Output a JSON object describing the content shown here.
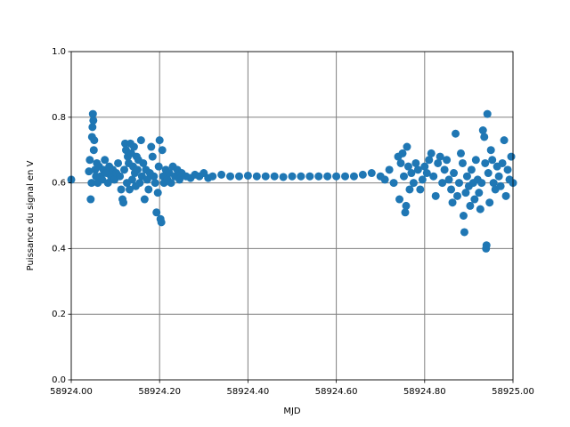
{
  "chart_data": {
    "type": "scatter",
    "xlabel": "MJD",
    "ylabel": "Puissance du signal en V",
    "color": "#1f77b4",
    "grid": true,
    "xlim": [
      58924.0,
      58925.0
    ],
    "xticks": [
      {
        "value": 58924.0,
        "label": "58924.00"
      },
      {
        "value": 58924.2,
        "label": "58924.20"
      },
      {
        "value": 58924.4,
        "label": "58924.40"
      },
      {
        "value": 58924.6,
        "label": "58924.60"
      },
      {
        "value": 58924.8,
        "label": "58924.80"
      },
      {
        "value": 58925.0,
        "label": "58925.00"
      }
    ],
    "ylim": [
      0,
      1
    ],
    "yticks": [
      {
        "value": 0,
        "label": "0.0"
      },
      0.2,
      0.4,
      0.6,
      0.8,
      {
        "value": 1,
        "label": "1.0"
      }
    ],
    "x": [
      58924.0,
      58924.04,
      58924.042,
      58924.044,
      58924.046,
      58924.047,
      58924.048,
      58924.049,
      58924.05,
      58924.051,
      58924.052,
      58924.054,
      58924.056,
      58924.058,
      58924.06,
      58924.063,
      58924.066,
      58924.07,
      58924.073,
      58924.076,
      58924.08,
      58924.083,
      58924.086,
      58924.09,
      58924.094,
      58924.098,
      58924.102,
      58924.106,
      58924.11,
      58924.113,
      58924.116,
      58924.118,
      58924.12,
      58924.122,
      58924.124,
      58924.126,
      58924.128,
      58924.13,
      58924.132,
      58924.134,
      58924.136,
      58924.138,
      58924.14,
      58924.142,
      58924.144,
      58924.146,
      58924.148,
      58924.15,
      58924.152,
      58924.155,
      58924.158,
      58924.16,
      58924.163,
      58924.166,
      58924.169,
      58924.172,
      58924.175,
      58924.178,
      58924.181,
      58924.184,
      58924.187,
      58924.19,
      58924.193,
      58924.196,
      58924.198,
      58924.2,
      58924.202,
      58924.204,
      58924.206,
      58924.208,
      58924.21,
      58924.214,
      58924.218,
      58924.222,
      58924.226,
      58924.23,
      58924.235,
      58924.24,
      58924.245,
      58924.25,
      58924.26,
      58924.27,
      58924.28,
      58924.29,
      58924.3,
      58924.31,
      58924.32,
      58924.34,
      58924.36,
      58924.38,
      58924.4,
      58924.42,
      58924.44,
      58924.46,
      58924.48,
      58924.5,
      58924.52,
      58924.54,
      58924.56,
      58924.58,
      58924.6,
      58924.62,
      58924.64,
      58924.66,
      58924.68,
      58924.7,
      58924.71,
      58924.72,
      58924.73,
      58924.74,
      58924.743,
      58924.746,
      58924.75,
      58924.753,
      58924.756,
      58924.758,
      58924.76,
      58924.763,
      58924.766,
      58924.77,
      58924.775,
      58924.78,
      58924.785,
      58924.79,
      58924.795,
      58924.8,
      58924.805,
      58924.81,
      58924.815,
      58924.82,
      58924.825,
      58924.83,
      58924.835,
      58924.84,
      58924.845,
      58924.85,
      58924.855,
      58924.86,
      58924.863,
      58924.866,
      58924.87,
      58924.874,
      58924.878,
      58924.882,
      58924.886,
      58924.888,
      58924.89,
      58924.893,
      58924.896,
      58924.9,
      58924.903,
      58924.906,
      58924.91,
      58924.913,
      58924.916,
      58924.92,
      58924.923,
      58924.926,
      58924.929,
      58924.932,
      58924.935,
      58924.937,
      58924.939,
      58924.94,
      58924.942,
      58924.944,
      58924.947,
      58924.95,
      58924.953,
      58924.956,
      58924.96,
      58924.964,
      58924.968,
      58924.972,
      58924.976,
      58924.98,
      58924.984,
      58924.988,
      58924.992,
      58924.996,
      58925.0
    ],
    "values": [
      0.61,
      0.635,
      0.67,
      0.55,
      0.6,
      0.74,
      0.77,
      0.81,
      0.79,
      0.7,
      0.73,
      0.64,
      0.62,
      0.66,
      0.6,
      0.65,
      0.62,
      0.61,
      0.64,
      0.67,
      0.63,
      0.6,
      0.65,
      0.62,
      0.64,
      0.61,
      0.63,
      0.66,
      0.62,
      0.58,
      0.55,
      0.54,
      0.64,
      0.72,
      0.7,
      0.6,
      0.68,
      0.66,
      0.58,
      0.72,
      0.69,
      0.61,
      0.65,
      0.71,
      0.63,
      0.59,
      0.68,
      0.64,
      0.67,
      0.6,
      0.73,
      0.62,
      0.66,
      0.55,
      0.64,
      0.61,
      0.58,
      0.63,
      0.71,
      0.68,
      0.62,
      0.6,
      0.51,
      0.57,
      0.65,
      0.73,
      0.49,
      0.48,
      0.7,
      0.62,
      0.6,
      0.64,
      0.61,
      0.63,
      0.6,
      0.65,
      0.62,
      0.64,
      0.61,
      0.63,
      0.62,
      0.615,
      0.625,
      0.62,
      0.63,
      0.615,
      0.62,
      0.625,
      0.62,
      0.62,
      0.622,
      0.62,
      0.62,
      0.62,
      0.618,
      0.62,
      0.62,
      0.62,
      0.62,
      0.62,
      0.62,
      0.62,
      0.62,
      0.625,
      0.63,
      0.62,
      0.61,
      0.64,
      0.6,
      0.68,
      0.55,
      0.66,
      0.69,
      0.62,
      0.51,
      0.53,
      0.71,
      0.65,
      0.58,
      0.63,
      0.6,
      0.66,
      0.64,
      0.58,
      0.61,
      0.65,
      0.63,
      0.67,
      0.69,
      0.62,
      0.56,
      0.66,
      0.68,
      0.6,
      0.64,
      0.67,
      0.61,
      0.58,
      0.54,
      0.63,
      0.75,
      0.56,
      0.6,
      0.69,
      0.66,
      0.5,
      0.45,
      0.57,
      0.62,
      0.59,
      0.53,
      0.64,
      0.6,
      0.55,
      0.67,
      0.61,
      0.57,
      0.52,
      0.6,
      0.76,
      0.74,
      0.66,
      0.4,
      0.41,
      0.81,
      0.63,
      0.54,
      0.7,
      0.67,
      0.6,
      0.58,
      0.65,
      0.62,
      0.59,
      0.66,
      0.73,
      0.56,
      0.64,
      0.61,
      0.68,
      0.6
    ]
  }
}
